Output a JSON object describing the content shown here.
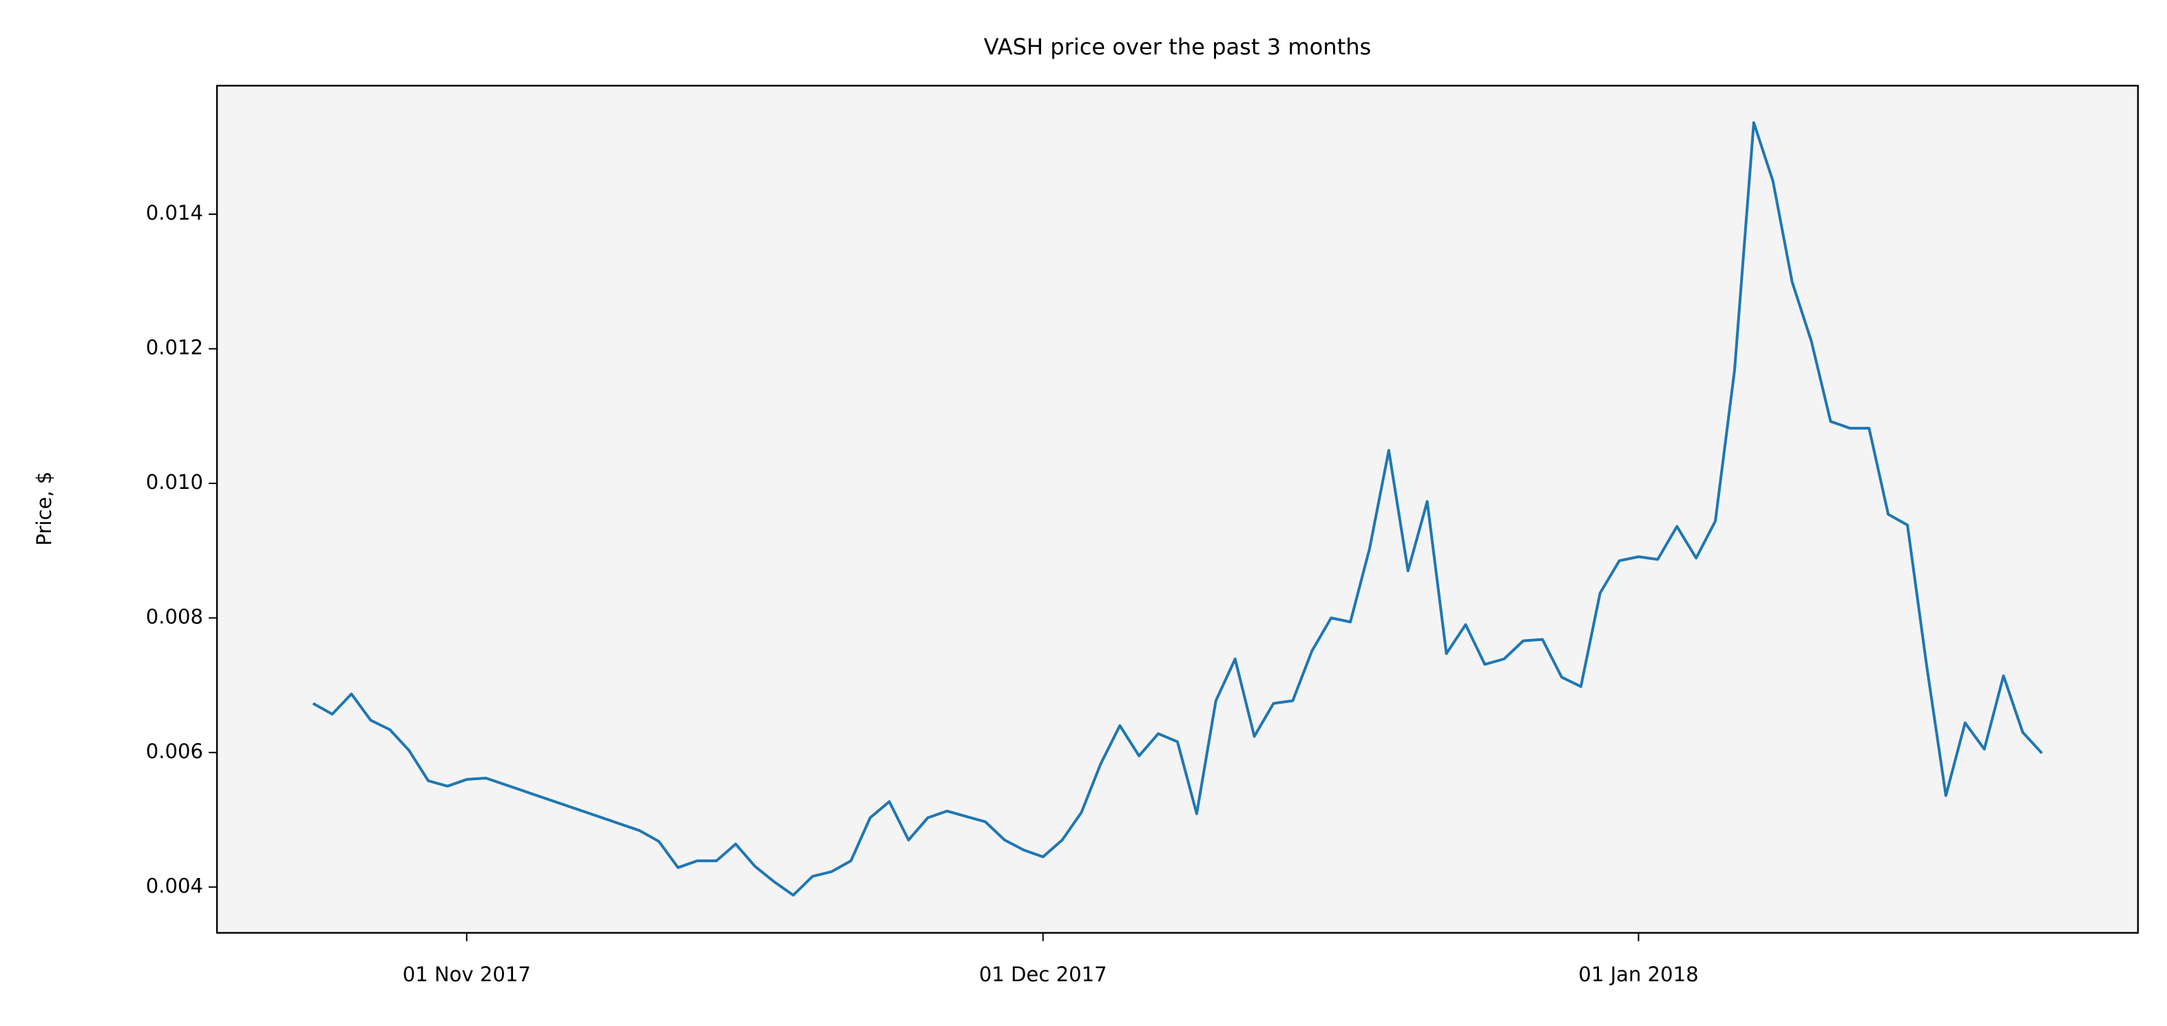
{
  "chart_data": {
    "type": "line",
    "title": "VASH price over the past 3 months",
    "y_label": "Price, $",
    "x": [
      "2017-10-24",
      "2017-10-25",
      "2017-10-26",
      "2017-10-27",
      "2017-10-28",
      "2017-10-29",
      "2017-10-30",
      "2017-10-31",
      "2017-11-01",
      "2017-11-02",
      "2017-11-10",
      "2017-11-11",
      "2017-11-12",
      "2017-11-13",
      "2017-11-14",
      "2017-11-15",
      "2017-11-16",
      "2017-11-17",
      "2017-11-18",
      "2017-11-19",
      "2017-11-20",
      "2017-11-21",
      "2017-11-22",
      "2017-11-23",
      "2017-11-24",
      "2017-11-25",
      "2017-11-26",
      "2017-11-27",
      "2017-11-28",
      "2017-11-29",
      "2017-11-30",
      "2017-12-01",
      "2017-12-02",
      "2017-12-03",
      "2017-12-04",
      "2017-12-05",
      "2017-12-06",
      "2017-12-07",
      "2017-12-08",
      "2017-12-09",
      "2017-12-10",
      "2017-12-11",
      "2017-12-12",
      "2017-12-13",
      "2017-12-14",
      "2017-12-15",
      "2017-12-16",
      "2017-12-17",
      "2017-12-18",
      "2017-12-19",
      "2017-12-20",
      "2017-12-21",
      "2017-12-22",
      "2017-12-23",
      "2017-12-24",
      "2017-12-25",
      "2017-12-26",
      "2017-12-27",
      "2017-12-28",
      "2017-12-29",
      "2017-12-30",
      "2017-12-31",
      "2018-01-01",
      "2018-01-02",
      "2018-01-03",
      "2018-01-04",
      "2018-01-05",
      "2018-01-06",
      "2018-01-07",
      "2018-01-08",
      "2018-01-09",
      "2018-01-10",
      "2018-01-11",
      "2018-01-12",
      "2018-01-13",
      "2018-01-14",
      "2018-01-15",
      "2018-01-16",
      "2018-01-17",
      "2018-01-18",
      "2018-01-19",
      "2018-01-20",
      "2018-01-21",
      "2018-01-22"
    ],
    "series": [
      {
        "name": "VASH",
        "color": "#1f77b4",
        "values": [
          0.00673,
          0.00657,
          0.00687,
          0.00648,
          0.00634,
          0.00603,
          0.00558,
          0.0055,
          0.0056,
          0.00562,
          0.00484,
          0.00468,
          0.00429,
          0.00439,
          0.00439,
          0.00464,
          0.00431,
          0.00408,
          0.00388,
          0.00416,
          0.00423,
          0.00439,
          0.00503,
          0.00527,
          0.0047,
          0.00503,
          0.00513,
          0.00505,
          0.00497,
          0.0047,
          0.00455,
          0.00445,
          0.0047,
          0.00511,
          0.00583,
          0.0064,
          0.00595,
          0.00628,
          0.00616,
          0.00509,
          0.00677,
          0.00739,
          0.00624,
          0.00673,
          0.00677,
          0.00751,
          0.008,
          0.00794,
          0.00903,
          0.01049,
          0.0087,
          0.00973,
          0.00747,
          0.0079,
          0.00731,
          0.00739,
          0.00766,
          0.00768,
          0.00712,
          0.00698,
          0.00837,
          0.00885,
          0.00891,
          0.00887,
          0.00936,
          0.00889,
          0.00944,
          0.01168,
          0.01536,
          0.01449,
          0.01299,
          0.01211,
          0.01092,
          0.01082,
          0.01082,
          0.00954,
          0.00938,
          0.00729,
          0.00536,
          0.00644,
          0.00605,
          0.00714,
          0.0063,
          0.00599
        ]
      }
    ],
    "xlim": [
      "2017-10-19",
      "2018-01-27"
    ],
    "xticks": [
      {
        "value": "2017-11-01",
        "label": "01 Nov 2017"
      },
      {
        "value": "2017-12-01",
        "label": "01 Dec 2017"
      },
      {
        "value": "2018-01-01",
        "label": "01 Jan 2018"
      }
    ],
    "ylim": [
      0.00332,
      0.01591
    ],
    "yticks": [
      0.004,
      0.006,
      0.008,
      {
        "value": 0.01,
        "label": "0.010"
      },
      0.012,
      0.014
    ],
    "plot_background": "#f4f4f4"
  }
}
